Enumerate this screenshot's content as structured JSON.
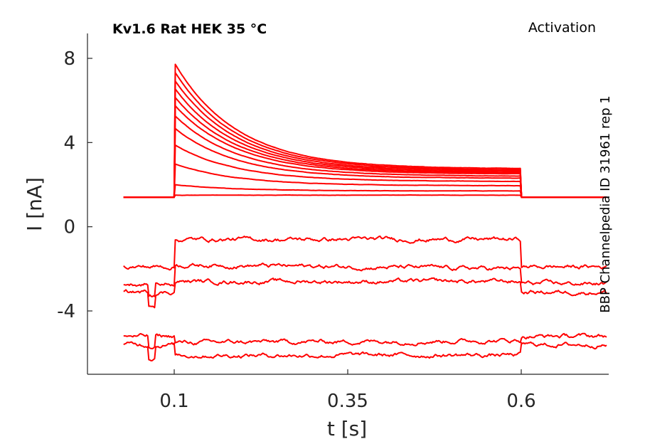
{
  "chart_data": {
    "type": "line",
    "title_left": "Kv1.6  Rat  HEK  35 °C",
    "title_right": "Activation",
    "side_label": "BBP Channelpedia ID 31961 rep 1",
    "xlabel": "t [s]",
    "ylabel": "I [nA]",
    "xlim": [
      0.0,
      0.75
    ],
    "ylim": [
      -7,
      9
    ],
    "xticks": [
      0.1,
      0.35,
      0.6
    ],
    "xtick_labels": [
      "0.1",
      "0.35",
      "0.6"
    ],
    "yticks": [
      8,
      4,
      0,
      -4
    ],
    "ytick_labels": [
      "8",
      "4",
      "0",
      "-4"
    ],
    "line_color": "#ff0000",
    "step_on": 0.1,
    "step_off": 0.6,
    "x_start": 0.027,
    "x_end": 0.723,
    "series": [
      {
        "baseline": 1.4,
        "peak": 7.8,
        "end": 2.75
      },
      {
        "baseline": 1.4,
        "peak": 7.4,
        "end": 2.7
      },
      {
        "baseline": 1.4,
        "peak": 7.0,
        "end": 2.65
      },
      {
        "baseline": 1.4,
        "peak": 6.6,
        "end": 2.6
      },
      {
        "baseline": 1.4,
        "peak": 6.2,
        "end": 2.55
      },
      {
        "baseline": 1.4,
        "peak": 5.8,
        "end": 2.5
      },
      {
        "baseline": 1.4,
        "peak": 5.3,
        "end": 2.4
      },
      {
        "baseline": 1.4,
        "peak": 4.7,
        "end": 2.3
      },
      {
        "baseline": 1.4,
        "peak": 3.9,
        "end": 2.15
      },
      {
        "baseline": 1.4,
        "peak": 3.0,
        "end": 1.95
      },
      {
        "baseline": 1.4,
        "peak": 2.0,
        "end": 1.7
      },
      {
        "baseline": 1.4,
        "peak": 1.5,
        "end": 1.5
      },
      {
        "baseline": -1.9,
        "step": -0.6,
        "end": -0.6
      },
      {
        "baseline": -2.7,
        "step": -1.8,
        "end": -2.0
      },
      {
        "baseline": -3.1,
        "step": -2.6,
        "end": -2.6
      },
      {
        "baseline": -5.2,
        "step": -5.5,
        "end": -5.4
      },
      {
        "baseline": -5.6,
        "step": -6.1,
        "end": -6.1
      }
    ]
  }
}
